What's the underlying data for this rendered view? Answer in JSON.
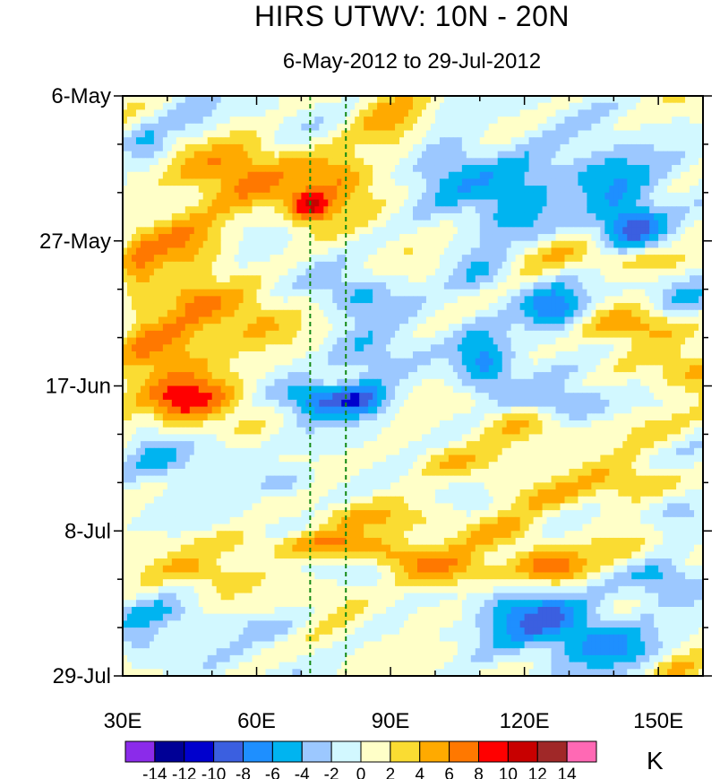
{
  "chart_data": {
    "type": "heatmap",
    "title": "HIRS UTWV: 10N - 20N",
    "subtitle": "6-May-2012 to 29-Jul-2012",
    "x_axis": {
      "ticks": [
        30,
        60,
        90,
        120,
        150
      ],
      "tick_labels": [
        "30E",
        "60E",
        "90E",
        "120E",
        "150E"
      ],
      "range": [
        30,
        160
      ]
    },
    "y_axis": {
      "ticks": [
        "2012-05-06",
        "2012-05-27",
        "2012-06-17",
        "2012-07-08",
        "2012-07-29"
      ],
      "tick_labels": [
        "6-May",
        "27-May",
        "17-Jun",
        "8-Jul",
        "29-Jul"
      ],
      "range": [
        "2012-05-06",
        "2012-07-29"
      ],
      "direction": "time increases downward"
    },
    "reference_lines": {
      "style": "dashed green vertical",
      "longitudes": [
        72,
        80
      ]
    },
    "colorbar": {
      "units": "K",
      "levels": [
        -14,
        -12,
        -10,
        -8,
        -6,
        -4,
        -2,
        0,
        2,
        4,
        6,
        8,
        10,
        12,
        14
      ],
      "labels": [
        "-14",
        "-12",
        "-10",
        "-8",
        "-6",
        "-4",
        "-2",
        "0",
        "2",
        "4",
        "6",
        "8",
        "10",
        "12",
        "14"
      ],
      "colors": [
        "#8B2BEA",
        "#000096",
        "#0000CD",
        "#3B5FE0",
        "#1E8FFF",
        "#00B4F0",
        "#9CC8FF",
        "#D2F8FF",
        "#FFFFC8",
        "#FADC32",
        "#FFAA00",
        "#FF7800",
        "#FF0000",
        "#C80000",
        "#A02828",
        "#FF69B4"
      ]
    },
    "anomaly_features": [
      {
        "lon": 56,
        "day": 11,
        "lon_width": 14,
        "day_width": 5,
        "value": 6
      },
      {
        "lon": 72,
        "day": 16,
        "lon_width": 5,
        "day_width": 2.5,
        "value": 9
      },
      {
        "lon": 79,
        "day": 12,
        "lon_width": 7,
        "day_width": 4,
        "value": 6
      },
      {
        "lon": 90,
        "day": 5,
        "lon_width": 8,
        "day_width": 6,
        "value": 4
      },
      {
        "lon": 44,
        "day": 21,
        "lon_width": 10,
        "day_width": 5,
        "value": 6
      },
      {
        "lon": 40,
        "day": 37,
        "lon_width": 11,
        "day_width": 5,
        "value": 7
      },
      {
        "lon": 46,
        "day": 44,
        "lon_width": 13,
        "day_width": 3.5,
        "value": 8
      },
      {
        "lon": 57,
        "day": 32,
        "lon_width": 11,
        "day_width": 4,
        "value": 4
      },
      {
        "lon": 34,
        "day": 25,
        "lon_width": 4,
        "day_width": 10,
        "value": 3
      },
      {
        "lon": 45,
        "day": 29,
        "lon_width": 6,
        "day_width": 3,
        "value": 3
      },
      {
        "lon": 36,
        "day": 7,
        "lon_width": 5,
        "day_width": 3,
        "value": -5
      },
      {
        "lon": 46,
        "day": 4,
        "lon_width": 6,
        "day_width": 3,
        "value": -3
      },
      {
        "lon": 74,
        "day": 44,
        "lon_width": 9,
        "day_width": 2.5,
        "value": -8
      },
      {
        "lon": 84,
        "day": 44,
        "lon_width": 6,
        "day_width": 2.5,
        "value": -6
      },
      {
        "lon": 83,
        "day": 29,
        "lon_width": 8,
        "day_width": 3,
        "value": -4
      },
      {
        "lon": 86,
        "day": 38,
        "lon_width": 9,
        "day_width": 4,
        "value": -5
      },
      {
        "lon": 103,
        "day": 10,
        "lon_width": 9,
        "day_width": 5,
        "value": -5
      },
      {
        "lon": 110,
        "day": 25,
        "lon_width": 8,
        "day_width": 4,
        "value": -5
      },
      {
        "lon": 118,
        "day": 15,
        "lon_width": 9,
        "day_width": 6,
        "value": -5
      },
      {
        "lon": 127,
        "day": 11,
        "lon_width": 11,
        "day_width": 4,
        "value": -3
      },
      {
        "lon": 144,
        "day": 19,
        "lon_width": 8,
        "day_width": 3.5,
        "value": -9
      },
      {
        "lon": 127,
        "day": 31,
        "lon_width": 8,
        "day_width": 3.5,
        "value": -9
      },
      {
        "lon": 141,
        "day": 13,
        "lon_width": 10,
        "day_width": 5,
        "value": -5
      },
      {
        "lon": 156,
        "day": 29,
        "lon_width": 6,
        "day_width": 5,
        "value": -3
      },
      {
        "lon": 126,
        "day": 23,
        "lon_width": 16,
        "day_width": 3,
        "value": 4
      },
      {
        "lon": 145,
        "day": 33,
        "lon_width": 14,
        "day_width": 2.5,
        "value": 6
      },
      {
        "lon": 148,
        "day": 24,
        "lon_width": 10,
        "day_width": 2,
        "value": 4
      },
      {
        "lon": 158,
        "day": 40,
        "lon_width": 8,
        "day_width": 3,
        "value": 4
      },
      {
        "lon": 146,
        "day": 48,
        "lon_width": 12,
        "day_width": 3,
        "value": 3
      },
      {
        "lon": 111,
        "day": 39,
        "lon_width": 6,
        "day_width": 5,
        "value": -6
      },
      {
        "lon": 129,
        "day": 45,
        "lon_width": 9,
        "day_width": 2.5,
        "value": -5
      },
      {
        "lon": 115,
        "day": 47,
        "lon_width": 18,
        "day_width": 2.5,
        "value": 3
      },
      {
        "lon": 103,
        "day": 53,
        "lon_width": 12,
        "day_width": 2.5,
        "value": 4
      },
      {
        "lon": 124,
        "day": 58,
        "lon_width": 12,
        "day_width": 2.5,
        "value": 4
      },
      {
        "lon": 145,
        "day": 56,
        "lon_width": 10,
        "day_width": 2.5,
        "value": 4
      },
      {
        "lon": 42,
        "day": 53,
        "lon_width": 8,
        "day_width": 2.5,
        "value": -4
      },
      {
        "lon": 67,
        "day": 56,
        "lon_width": 8,
        "day_width": 2,
        "value": -4
      },
      {
        "lon": 36,
        "day": 48,
        "lon_width": 4,
        "day_width": 4,
        "value": -3
      },
      {
        "lon": 52,
        "day": 51,
        "lon_width": 6,
        "day_width": 2,
        "value": -3
      },
      {
        "lon": 104,
        "day": 47,
        "lon_width": 7,
        "day_width": 2,
        "value": -3
      },
      {
        "lon": 116,
        "day": 63,
        "lon_width": 10,
        "day_width": 2.5,
        "value": 4
      },
      {
        "lon": 104,
        "day": 69,
        "lon_width": 10,
        "day_width": 3,
        "value": 5
      },
      {
        "lon": 126,
        "day": 68,
        "lon_width": 8,
        "day_width": 2.5,
        "value": 7
      },
      {
        "lon": 142,
        "day": 66,
        "lon_width": 10,
        "day_width": 3,
        "value": 4
      },
      {
        "lon": 85,
        "day": 61,
        "lon_width": 16,
        "day_width": 2,
        "value": 3
      },
      {
        "lon": 58,
        "day": 65,
        "lon_width": 12,
        "day_width": 2,
        "value": 3
      },
      {
        "lon": 78,
        "day": 65,
        "lon_width": 12,
        "day_width": 2,
        "value": 6
      },
      {
        "lon": 48,
        "day": 69,
        "lon_width": 10,
        "day_width": 2,
        "value": 4
      },
      {
        "lon": 92,
        "day": 67,
        "lon_width": 8,
        "day_width": 2,
        "value": 4
      },
      {
        "lon": 122,
        "day": 75,
        "lon_width": 13,
        "day_width": 4,
        "value": -8
      },
      {
        "lon": 138,
        "day": 78,
        "lon_width": 12,
        "day_width": 3,
        "value": -5
      },
      {
        "lon": 150,
        "day": 70,
        "lon_width": 8,
        "day_width": 3,
        "value": -5
      },
      {
        "lon": 154,
        "day": 60,
        "lon_width": 8,
        "day_width": 3,
        "value": -4
      },
      {
        "lon": 141,
        "day": 81,
        "lon_width": 12,
        "day_width": 2.5,
        "value": -4
      },
      {
        "lon": 40,
        "day": 75,
        "lon_width": 8,
        "day_width": 2,
        "value": -3
      },
      {
        "lon": 63,
        "day": 77,
        "lon_width": 8,
        "day_width": 2,
        "value": -3
      },
      {
        "lon": 100,
        "day": 75,
        "lon_width": 10,
        "day_width": 2,
        "value": 3
      },
      {
        "lon": 76,
        "day": 72,
        "lon_width": 8,
        "day_width": 2,
        "value": 3
      },
      {
        "lon": 155,
        "day": 83,
        "lon_width": 6,
        "day_width": 2,
        "value": 4
      },
      {
        "lon": 34,
        "day": 79,
        "lon_width": 5,
        "day_width": 4,
        "value": -3
      }
    ],
    "gridlines": false
  }
}
